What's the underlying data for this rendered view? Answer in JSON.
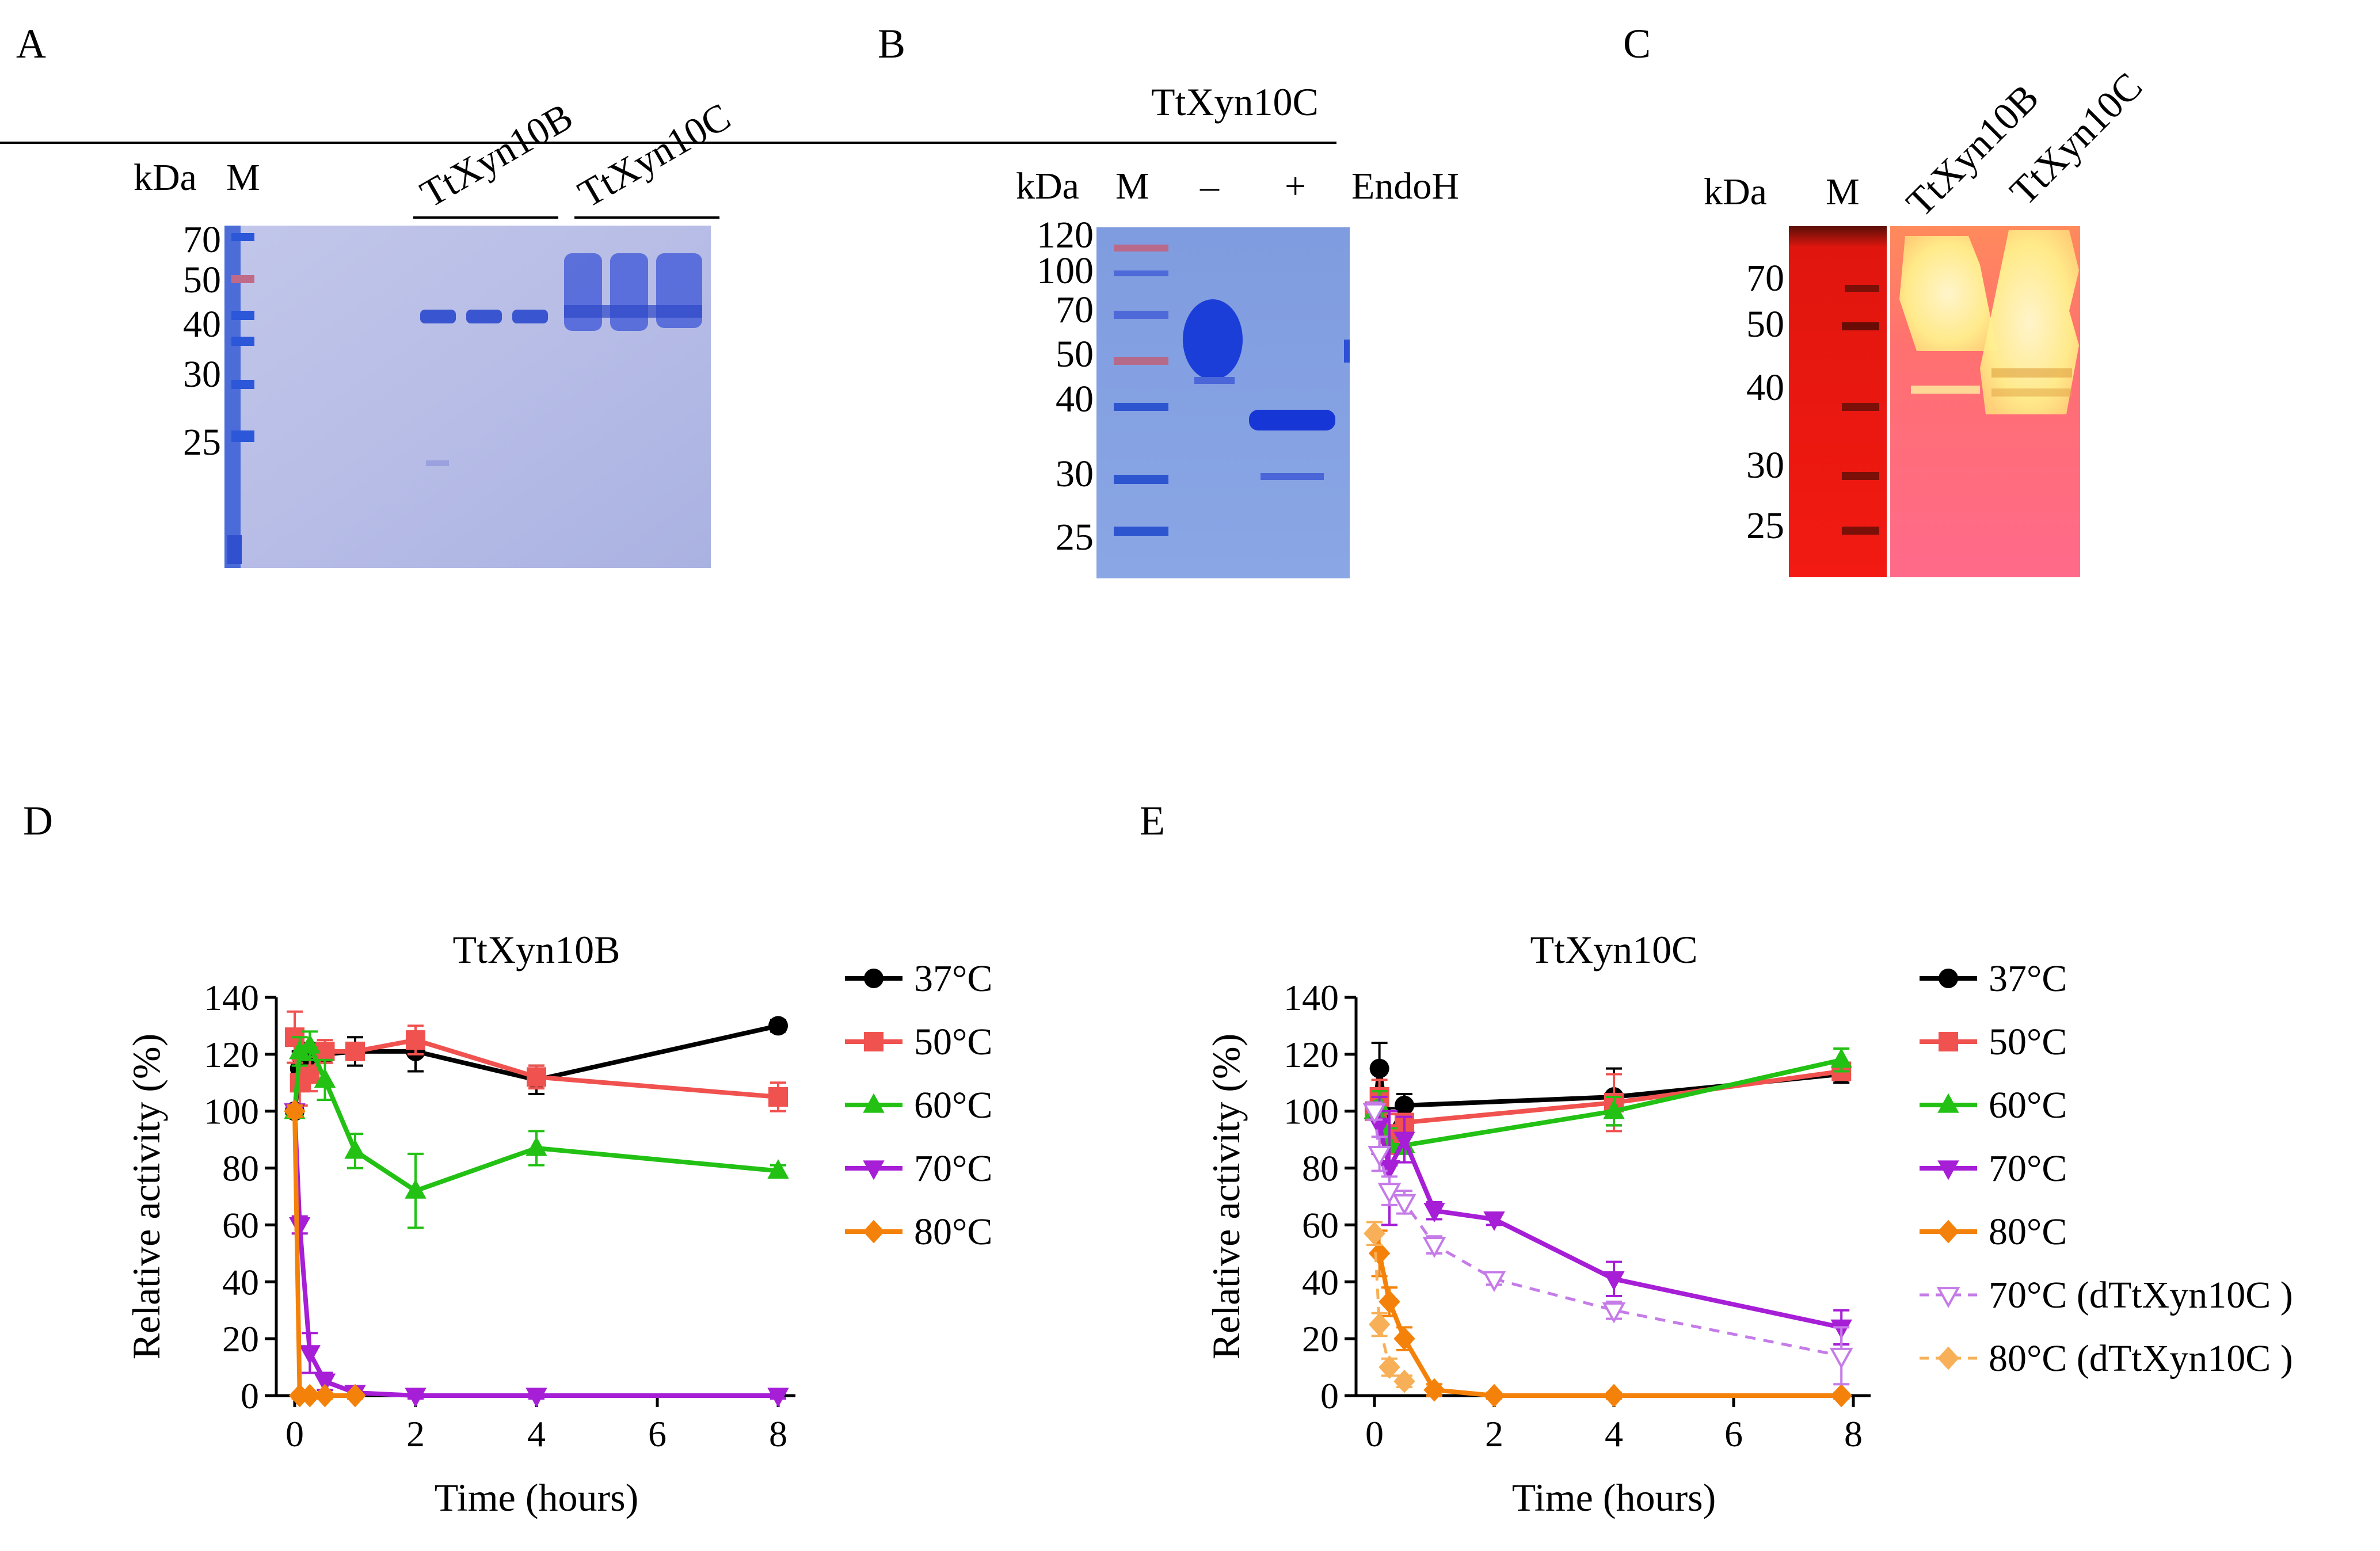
{
  "panels": {
    "A": {
      "letter": "A",
      "kda_label": "kDa",
      "marker_label": "M",
      "sample_labels": [
        "TtXyn10B",
        "TtXyn10C"
      ],
      "markers": [
        "70",
        "50",
        "40",
        "30",
        "25"
      ]
    },
    "B": {
      "letter": "B",
      "protein_label": "TtXyn10C",
      "kda_label": "kDa",
      "marker_label": "M",
      "minus_label": "–",
      "plus_label": "+",
      "treatment_label": "EndoH",
      "markers": [
        "120",
        "100",
        "70",
        "50",
        "40",
        "30",
        "25"
      ]
    },
    "C": {
      "letter": "C",
      "kda_label": "kDa",
      "marker_label": "M",
      "sample_labels": [
        "TtXyn10B",
        "TtXyn10C"
      ],
      "markers": [
        "70",
        "50",
        "40",
        "30",
        "25"
      ]
    }
  },
  "colors": {
    "c37": "#000000",
    "c50": "#f0524f",
    "c60": "#22c114",
    "c70": "#a61ed6",
    "c80": "#f4820a",
    "c70d": "#c57be8",
    "c80d": "#f7b058"
  },
  "chart_data": [
    {
      "panel": "D",
      "type": "line",
      "title": "TtXyn10B",
      "xlabel": "Time (hours)",
      "ylabel": "Relative activity (%)",
      "xlim": [
        0,
        8
      ],
      "ylim": [
        0,
        140
      ],
      "xticks": [
        0,
        2,
        4,
        6,
        8
      ],
      "yticks": [
        0,
        20,
        40,
        60,
        80,
        100,
        120,
        140
      ],
      "series": [
        {
          "name": "37°C",
          "color_key": "c37",
          "marker": "circle",
          "dashed": false,
          "x": [
            0,
            0.083,
            0.25,
            0.5,
            1,
            2,
            4,
            8
          ],
          "y": [
            100,
            115,
            119,
            120,
            121,
            121,
            111,
            130
          ],
          "err": [
            2,
            6,
            5,
            3,
            5,
            7,
            5,
            2
          ]
        },
        {
          "name": "50°C",
          "color_key": "c50",
          "marker": "square",
          "dashed": false,
          "x": [
            0,
            0.083,
            0.25,
            0.5,
            1,
            2,
            4,
            8
          ],
          "y": [
            126,
            110,
            113,
            121,
            121,
            125,
            112,
            105
          ],
          "err": [
            9,
            8,
            6,
            4,
            3,
            5,
            4,
            5
          ]
        },
        {
          "name": "60°C",
          "color_key": "c60",
          "marker": "triangle-up",
          "dashed": false,
          "x": [
            0,
            0.083,
            0.25,
            0.5,
            1,
            2,
            4,
            8
          ],
          "y": [
            100,
            121,
            123,
            111,
            86,
            72,
            87,
            79
          ],
          "err": [
            2,
            5,
            5,
            7,
            6,
            13,
            6,
            2
          ]
        },
        {
          "name": "70°C",
          "color_key": "c70",
          "marker": "triangle-down",
          "dashed": false,
          "x": [
            0,
            0.083,
            0.25,
            0.5,
            1,
            2,
            4,
            8
          ],
          "y": [
            100,
            60,
            15,
            5,
            1,
            0,
            0,
            0
          ],
          "err": [
            2,
            3,
            7,
            3,
            2,
            1,
            1,
            1
          ]
        },
        {
          "name": "80°C",
          "color_key": "c80",
          "marker": "diamond",
          "dashed": false,
          "x": [
            0,
            0.083,
            0.25,
            0.5,
            1
          ],
          "y": [
            100,
            0,
            0,
            0,
            0
          ],
          "err": [
            2,
            1,
            1,
            1,
            1
          ]
        }
      ]
    },
    {
      "panel": "E",
      "type": "line",
      "title": "TtXyn10C",
      "xlabel": "Time (hours)",
      "ylabel": "Relative activity (%)",
      "xlim": [
        0,
        8
      ],
      "ylim": [
        0,
        140
      ],
      "xticks": [
        0,
        2,
        4,
        6,
        8
      ],
      "yticks": [
        0,
        20,
        40,
        60,
        80,
        100,
        120,
        140
      ],
      "series": [
        {
          "name": "37°C",
          "color_key": "c37",
          "marker": "circle",
          "dashed": false,
          "x": [
            0,
            0.083,
            0.25,
            0.5,
            4,
            7.8
          ],
          "y": [
            100,
            115,
            91,
            102,
            105,
            113
          ],
          "err": [
            3,
            9,
            10,
            4,
            10,
            3
          ]
        },
        {
          "name": "50°C",
          "color_key": "c50",
          "marker": "square",
          "dashed": false,
          "x": [
            0,
            0.083,
            0.25,
            0.5,
            4,
            7.8
          ],
          "y": [
            100,
            105,
            92,
            96,
            103,
            114
          ],
          "err": [
            3,
            6,
            7,
            3,
            10,
            3
          ]
        },
        {
          "name": "60°C",
          "color_key": "c60",
          "marker": "triangle-up",
          "dashed": false,
          "x": [
            0,
            0.083,
            0.25,
            0.5,
            4,
            7.8
          ],
          "y": [
            100,
            102,
            88,
            88,
            100,
            118
          ],
          "err": [
            3,
            5,
            6,
            3,
            5,
            4
          ]
        },
        {
          "name": "70°C",
          "color_key": "c70",
          "marker": "triangle-down",
          "dashed": false,
          "x": [
            0,
            0.083,
            0.25,
            0.5,
            1,
            2,
            4,
            7.8
          ],
          "y": [
            100,
            95,
            80,
            90,
            65,
            62,
            41,
            24
          ],
          "err": [
            3,
            10,
            20,
            8,
            3,
            2,
            6,
            6
          ]
        },
        {
          "name": "80°C",
          "color_key": "c80",
          "marker": "diamond",
          "dashed": false,
          "x": [
            0,
            0.083,
            0.25,
            0.5,
            1,
            2,
            4,
            7.8
          ],
          "y": [
            57,
            50,
            33,
            20,
            2,
            0,
            0,
            0
          ],
          "err": [
            4,
            8,
            5,
            4,
            2,
            1,
            1,
            1
          ]
        },
        {
          "name": "70°C (dTtXyn10C )",
          "color_key": "c70d",
          "marker": "triangle-down-open",
          "dashed": true,
          "x": [
            0,
            0.083,
            0.25,
            0.5,
            1,
            2,
            4,
            7.8
          ],
          "y": [
            100,
            85,
            72,
            68,
            53,
            41,
            30,
            14
          ],
          "err": [
            3,
            6,
            5,
            4,
            3,
            2,
            3,
            10
          ]
        },
        {
          "name": "80°C (dTtXyn10C )",
          "color_key": "c80d",
          "marker": "diamond",
          "dashed": true,
          "x": [
            0,
            0.083,
            0.25,
            0.5
          ],
          "y": [
            57,
            25,
            10,
            5
          ],
          "err": [
            4,
            4,
            3,
            2
          ]
        }
      ]
    }
  ]
}
